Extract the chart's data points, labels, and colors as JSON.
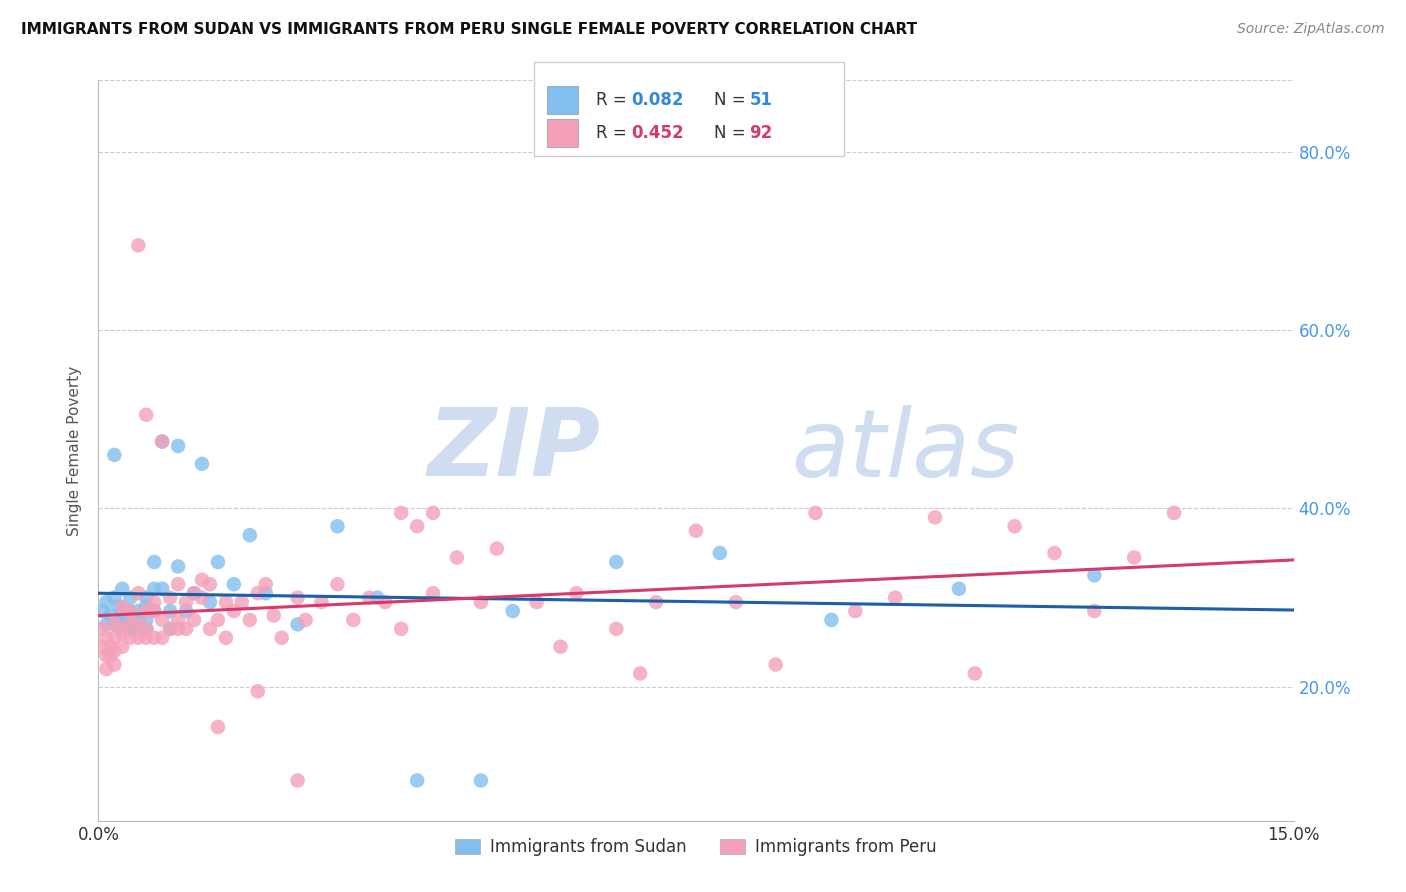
{
  "title": "IMMIGRANTS FROM SUDAN VS IMMIGRANTS FROM PERU SINGLE FEMALE POVERTY CORRELATION CHART",
  "source": "Source: ZipAtlas.com",
  "ylabel": "Single Female Poverty",
  "y_ticks": [
    0.2,
    0.4,
    0.6,
    0.8
  ],
  "y_tick_labels": [
    "20.0%",
    "40.0%",
    "60.0%",
    "80.0%"
  ],
  "xlim": [
    0.0,
    0.15
  ],
  "ylim": [
    0.05,
    0.88
  ],
  "x_tick_left": "0.0%",
  "x_tick_right": "15.0%",
  "legend_r_sudan": "0.082",
  "legend_n_sudan": "51",
  "legend_r_peru": "0.452",
  "legend_n_peru": "92",
  "color_sudan": "#82bfee",
  "color_peru": "#f4a0b8",
  "line_color_sudan": "#1a5fa8",
  "line_color_peru": "#d63a6a",
  "watermark_zip": "ZIP",
  "watermark_atlas": "atlas",
  "legend_label_sudan": "Immigrants from Sudan",
  "legend_label_peru": "Immigrants from Peru",
  "sudan_x": [
    0.0005,
    0.001,
    0.001,
    0.0015,
    0.002,
    0.002,
    0.002,
    0.0025,
    0.003,
    0.003,
    0.003,
    0.003,
    0.004,
    0.004,
    0.004,
    0.004,
    0.005,
    0.005,
    0.005,
    0.006,
    0.006,
    0.006,
    0.006,
    0.007,
    0.007,
    0.007,
    0.008,
    0.008,
    0.009,
    0.009,
    0.01,
    0.01,
    0.011,
    0.012,
    0.013,
    0.014,
    0.015,
    0.017,
    0.019,
    0.021,
    0.025,
    0.03,
    0.035,
    0.04,
    0.048,
    0.052,
    0.065,
    0.078,
    0.092,
    0.108,
    0.125
  ],
  "sudan_y": [
    0.285,
    0.295,
    0.27,
    0.28,
    0.46,
    0.3,
    0.27,
    0.29,
    0.31,
    0.285,
    0.275,
    0.27,
    0.3,
    0.285,
    0.27,
    0.265,
    0.285,
    0.275,
    0.265,
    0.29,
    0.275,
    0.265,
    0.3,
    0.34,
    0.31,
    0.285,
    0.31,
    0.475,
    0.285,
    0.265,
    0.335,
    0.47,
    0.285,
    0.305,
    0.45,
    0.295,
    0.34,
    0.315,
    0.37,
    0.305,
    0.27,
    0.38,
    0.3,
    0.095,
    0.095,
    0.285,
    0.34,
    0.35,
    0.275,
    0.31,
    0.325
  ],
  "peru_x": [
    0.0005,
    0.0005,
    0.001,
    0.001,
    0.001,
    0.0015,
    0.0015,
    0.002,
    0.002,
    0.002,
    0.002,
    0.003,
    0.003,
    0.003,
    0.003,
    0.004,
    0.004,
    0.004,
    0.005,
    0.005,
    0.005,
    0.006,
    0.006,
    0.006,
    0.007,
    0.007,
    0.007,
    0.008,
    0.008,
    0.009,
    0.009,
    0.01,
    0.01,
    0.01,
    0.011,
    0.011,
    0.012,
    0.012,
    0.013,
    0.013,
    0.014,
    0.014,
    0.015,
    0.016,
    0.016,
    0.017,
    0.018,
    0.019,
    0.02,
    0.021,
    0.022,
    0.023,
    0.025,
    0.026,
    0.028,
    0.03,
    0.032,
    0.034,
    0.036,
    0.038,
    0.04,
    0.042,
    0.045,
    0.048,
    0.05,
    0.055,
    0.058,
    0.06,
    0.065,
    0.068,
    0.07,
    0.075,
    0.08,
    0.085,
    0.09,
    0.095,
    0.1,
    0.105,
    0.11,
    0.115,
    0.12,
    0.125,
    0.13,
    0.135,
    0.038,
    0.042,
    0.015,
    0.02,
    0.025,
    0.005,
    0.006,
    0.008
  ],
  "peru_y": [
    0.265,
    0.245,
    0.255,
    0.235,
    0.22,
    0.235,
    0.245,
    0.24,
    0.255,
    0.225,
    0.27,
    0.265,
    0.26,
    0.245,
    0.29,
    0.27,
    0.255,
    0.285,
    0.255,
    0.27,
    0.305,
    0.285,
    0.255,
    0.265,
    0.295,
    0.255,
    0.285,
    0.275,
    0.255,
    0.265,
    0.3,
    0.275,
    0.265,
    0.315,
    0.265,
    0.295,
    0.305,
    0.275,
    0.3,
    0.32,
    0.265,
    0.315,
    0.275,
    0.295,
    0.255,
    0.285,
    0.295,
    0.275,
    0.305,
    0.315,
    0.28,
    0.255,
    0.3,
    0.275,
    0.295,
    0.315,
    0.275,
    0.3,
    0.295,
    0.265,
    0.38,
    0.305,
    0.345,
    0.295,
    0.355,
    0.295,
    0.245,
    0.305,
    0.265,
    0.215,
    0.295,
    0.375,
    0.295,
    0.225,
    0.395,
    0.285,
    0.3,
    0.39,
    0.215,
    0.38,
    0.35,
    0.285,
    0.345,
    0.395,
    0.395,
    0.395,
    0.155,
    0.195,
    0.095,
    0.695,
    0.505,
    0.475
  ]
}
